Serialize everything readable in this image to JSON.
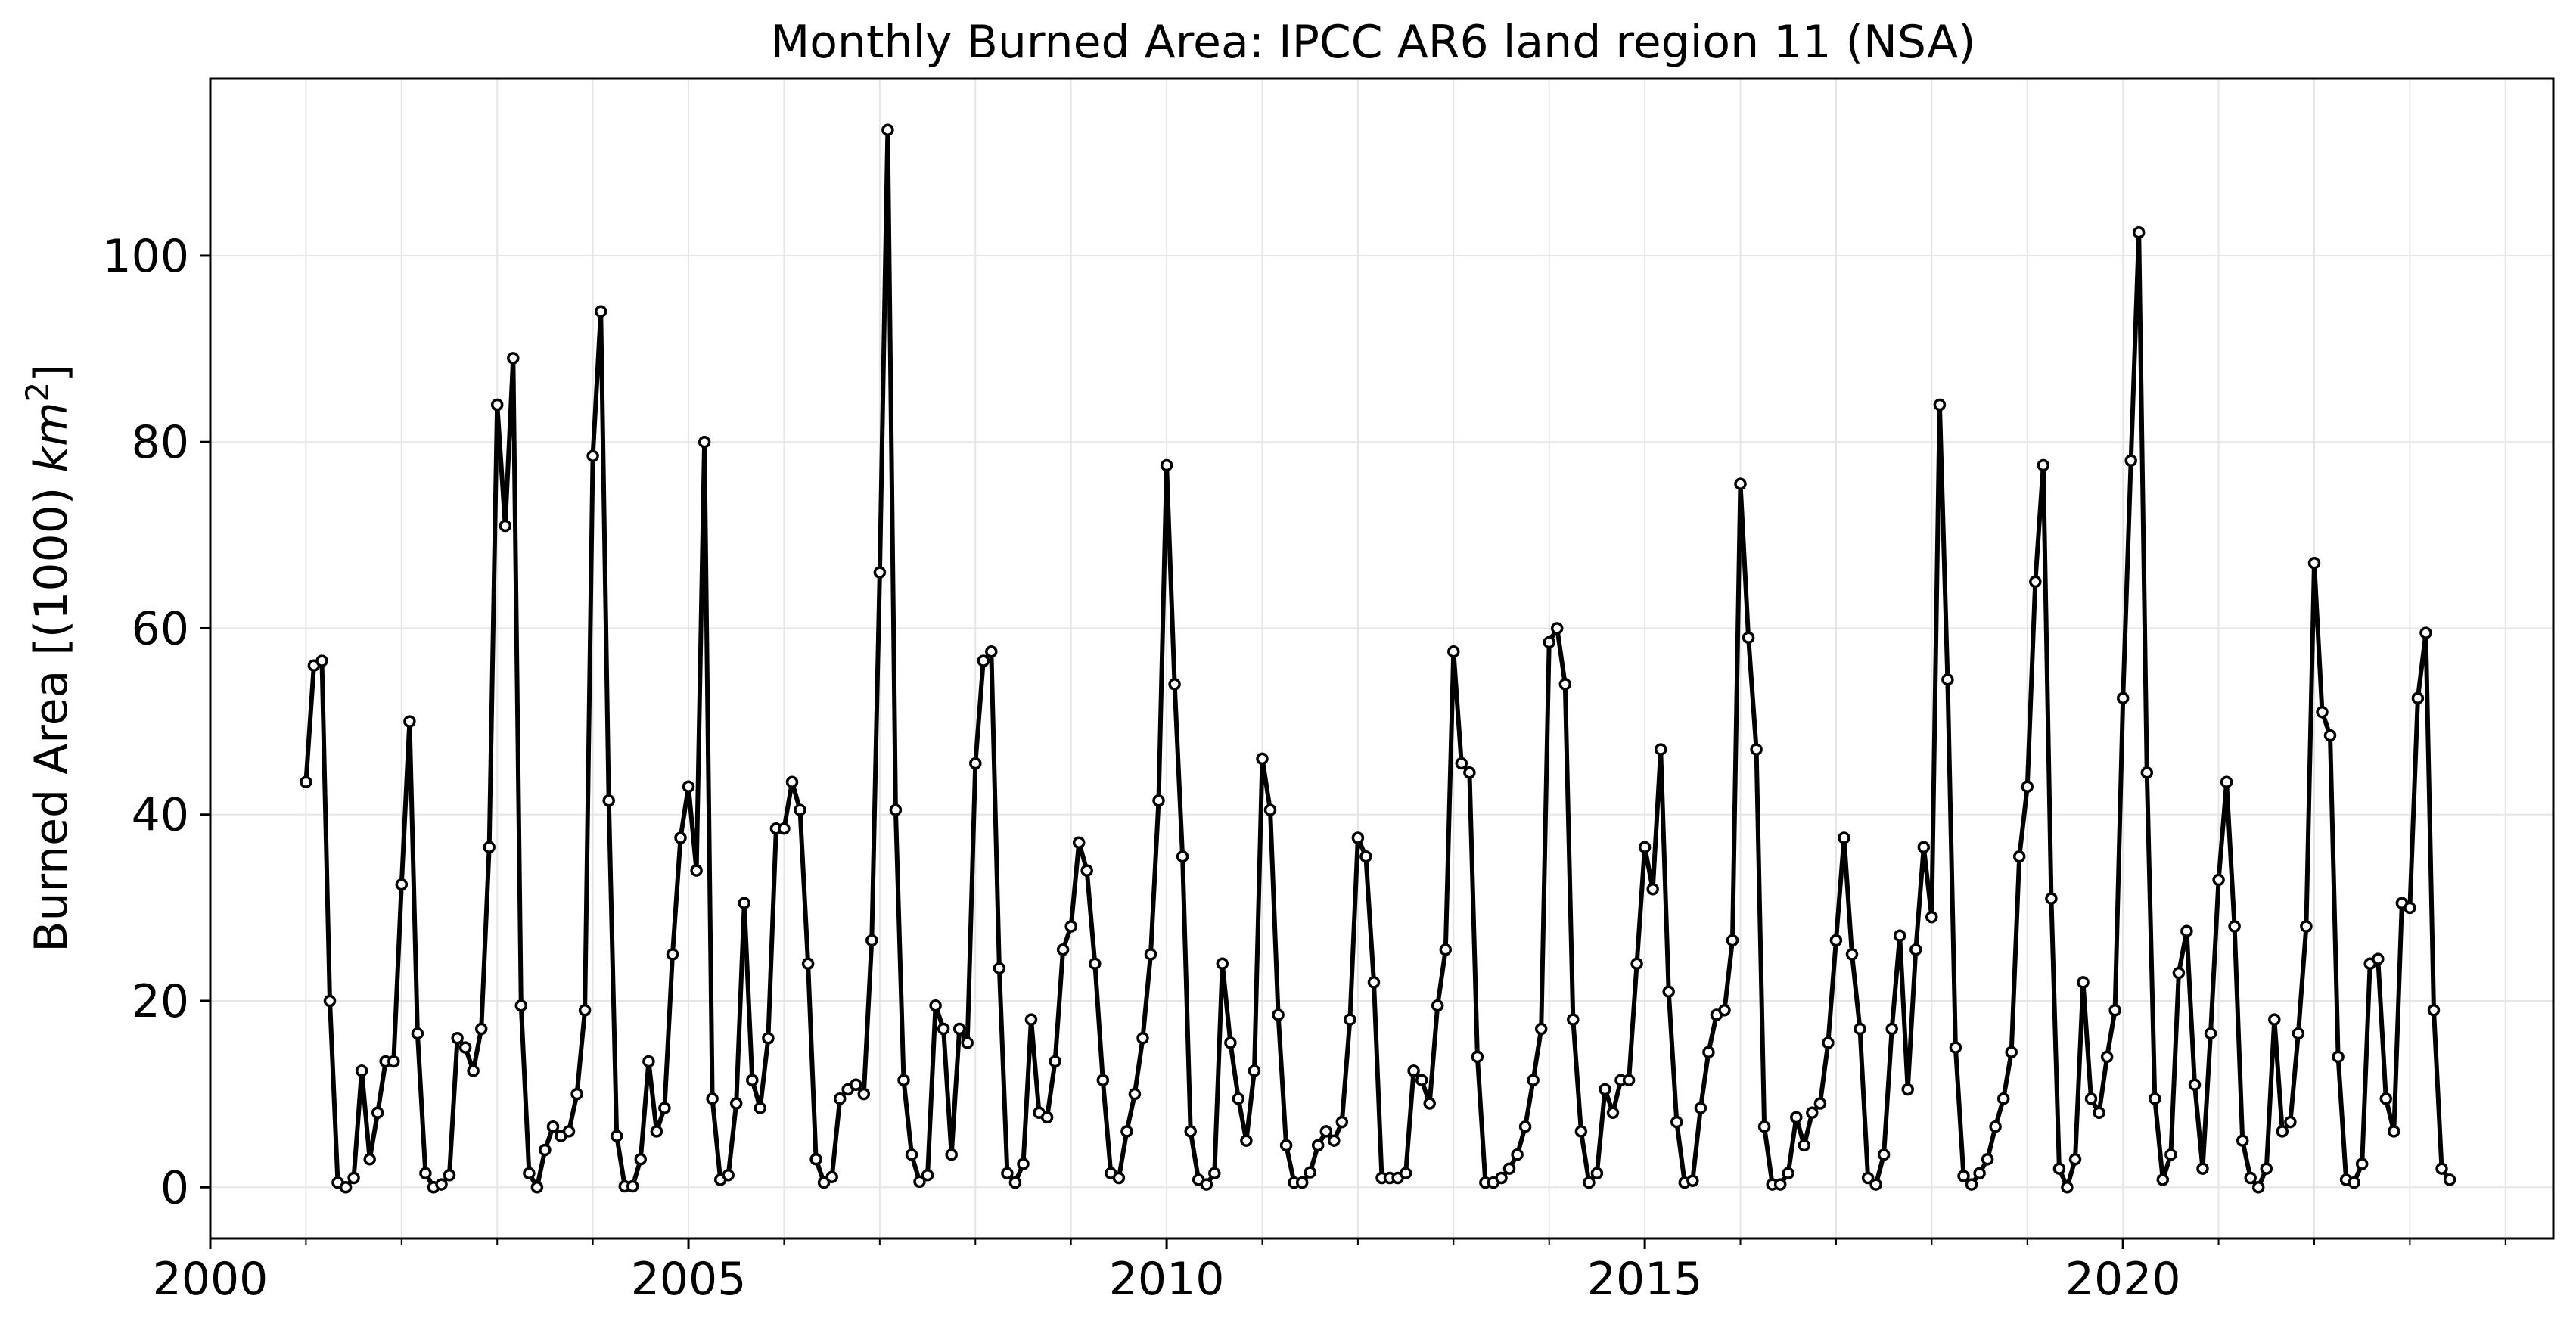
{
  "chart_data": {
    "type": "line",
    "title": "Monthly Burned Area: IPCC AR6 land region 11 (NSA)",
    "xlabel": "",
    "ylabel_text": "Burned Area [(1000) ",
    "ylabel_unit": "km",
    "ylabel_unit_exp": "2",
    "ylabel_close": "]",
    "xlim": [
      "2000-01",
      "2024-07"
    ],
    "ylim": [
      -5.5,
      119
    ],
    "x_ticks": [
      "2000",
      "2005",
      "2010",
      "2015",
      "2020"
    ],
    "y_ticks": [
      "0",
      "20",
      "40",
      "60",
      "80",
      "100"
    ],
    "x_minor_ticks": [
      "2001",
      "2002",
      "2003",
      "2004",
      "2006",
      "2007",
      "2008",
      "2009",
      "2011",
      "2012",
      "2013",
      "2014",
      "2016",
      "2017",
      "2018",
      "2019",
      "2021",
      "2022",
      "2023",
      "2024"
    ],
    "grid": true,
    "x_start": "2001-01",
    "series": [
      {
        "values": [
          43.5,
          56,
          56.5,
          20,
          0.5,
          0,
          1,
          12.5,
          3,
          8,
          13.5,
          13.5,
          32.5,
          50,
          16.5,
          1.5,
          0,
          0.3,
          1.3,
          16,
          15,
          12.5,
          17,
          36.5,
          84,
          71,
          89,
          19.5,
          1.5,
          0,
          4,
          6.5,
          5.5,
          6,
          10,
          19,
          78.5,
          94,
          41.5,
          5.5,
          0.1,
          0.1,
          3,
          13.5,
          6,
          8.5,
          25,
          37.5,
          43,
          34,
          80,
          9.5,
          0.8,
          1.3,
          9,
          30.5,
          11.5,
          8.5,
          16,
          38.5,
          38.5,
          43.5,
          40.5,
          24,
          3,
          0.5,
          1.1,
          9.5,
          10.5,
          11,
          10,
          26.5,
          66,
          113.5,
          40.5,
          11.5,
          3.5,
          0.6,
          1.3,
          19.5,
          17,
          3.5,
          17,
          15.5,
          45.5,
          56.5,
          57.5,
          23.5,
          1.5,
          0.5,
          2.5,
          18,
          8,
          7.5,
          13.5,
          25.5,
          28,
          37,
          34,
          24,
          11.5,
          1.5,
          1,
          6,
          10,
          16,
          25,
          41.5,
          77.5,
          54,
          35.5,
          6,
          0.8,
          0.3,
          1.5,
          24,
          15.5,
          9.5,
          5,
          12.5,
          46,
          40.5,
          18.5,
          4.5,
          0.5,
          0.5,
          1.6,
          4.5,
          6,
          5,
          7,
          18,
          37.5,
          35.5,
          22,
          1,
          1,
          1,
          1.5,
          12.5,
          11.5,
          9,
          19.5,
          25.5,
          57.5,
          45.5,
          44.5,
          14,
          0.5,
          0.5,
          1,
          2,
          3.5,
          6.5,
          11.5,
          17,
          58.5,
          60,
          54,
          18,
          6,
          0.5,
          1.5,
          10.5,
          8,
          11.5,
          11.5,
          24,
          36.5,
          32,
          47,
          21,
          7,
          0.5,
          0.7,
          8.5,
          14.5,
          18.5,
          19,
          26.5,
          75.5,
          59,
          47,
          6.5,
          0.3,
          0.3,
          1.5,
          7.5,
          4.5,
          8,
          9,
          15.5,
          26.5,
          37.5,
          25,
          17,
          1,
          0.3,
          3.5,
          17,
          27,
          10.5,
          25.5,
          36.5,
          29,
          84,
          54.5,
          15,
          1.2,
          0.3,
          1.5,
          3,
          6.5,
          9.5,
          14.5,
          35.5,
          43,
          65,
          77.5,
          31,
          2,
          0,
          3,
          22,
          9.5,
          8,
          14,
          19,
          52.5,
          78,
          102.5,
          44.5,
          9.5,
          0.8,
          3.5,
          23,
          27.5,
          11,
          2,
          16.5,
          33,
          43.5,
          28,
          5,
          1,
          0,
          2,
          18,
          6,
          7,
          16.5,
          28,
          67,
          51,
          48.5,
          14,
          0.8,
          0.5,
          2.5,
          24,
          24.5,
          9.5,
          6,
          30.5,
          30,
          52.5,
          59.5,
          19,
          2,
          0.8
        ]
      }
    ],
    "colors": {
      "line": "#000000",
      "marker_fill": "#ffffff",
      "grid": "#e6e6e6"
    }
  }
}
